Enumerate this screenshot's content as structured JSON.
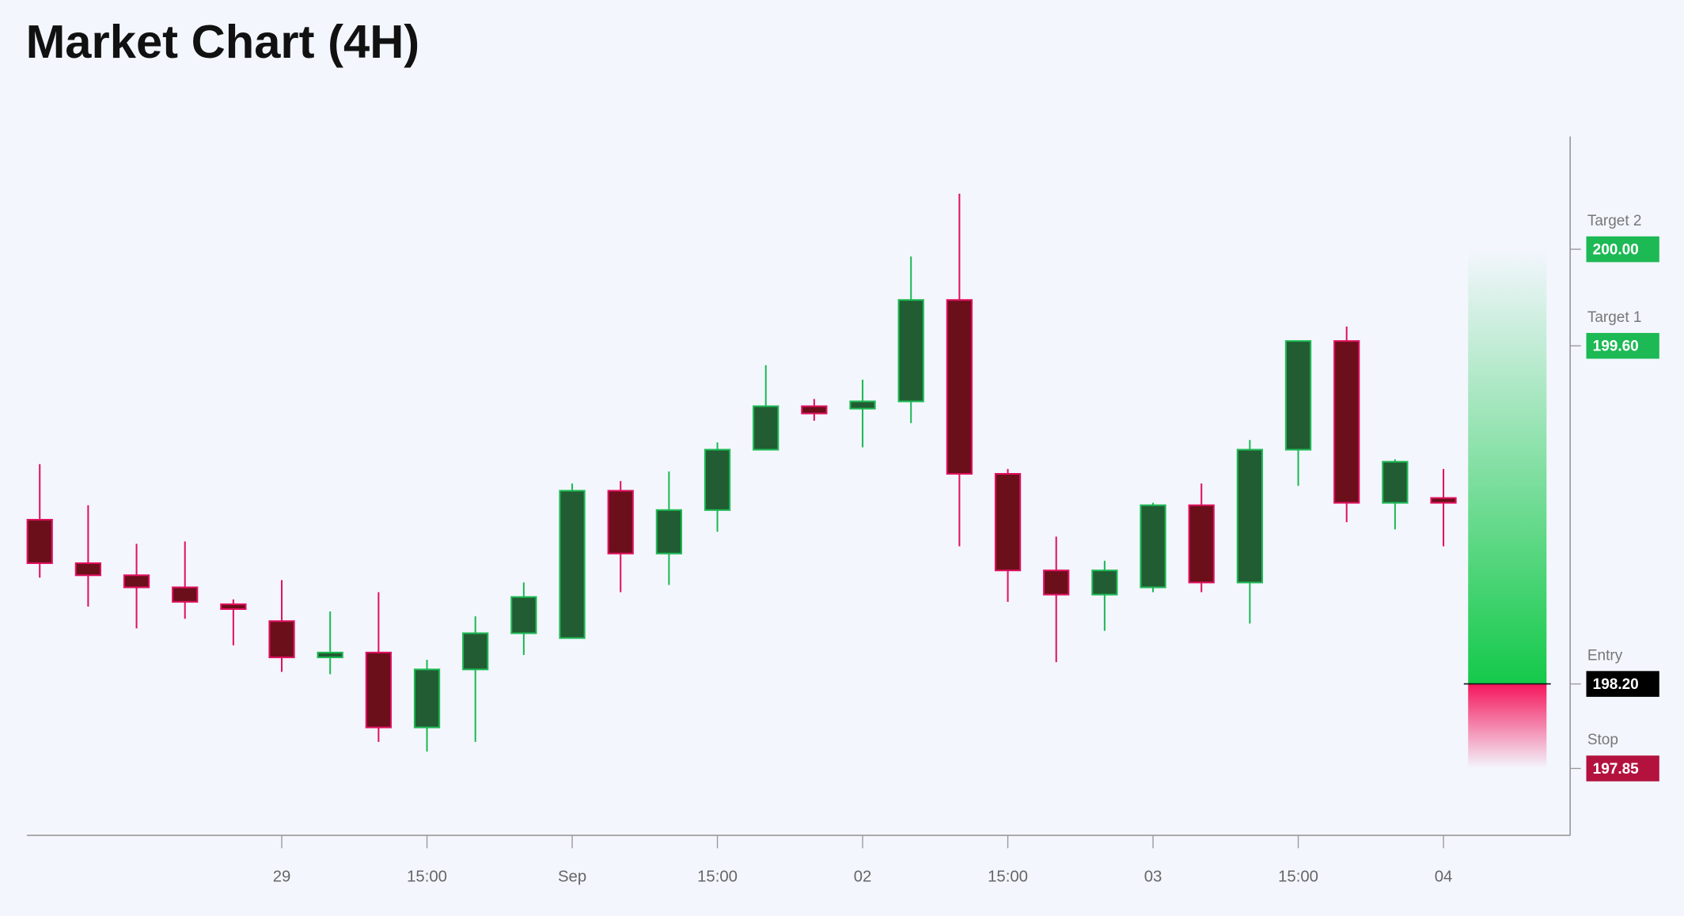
{
  "chart_data": {
    "type": "candlestick",
    "title": "Market Chart (4H)",
    "categories": [
      null,
      null,
      null,
      null,
      null,
      "29",
      null,
      null,
      "15:00",
      null,
      null,
      "Sep",
      null,
      null,
      "15:00",
      null,
      null,
      "02",
      null,
      null,
      "15:00",
      null,
      null,
      "03",
      null,
      null,
      "15:00",
      null,
      null,
      "04"
    ],
    "open": [
      198.88,
      198.7,
      198.65,
      198.6,
      198.53,
      198.46,
      198.31,
      198.33,
      198.02,
      198.26,
      198.41,
      198.39,
      199.0,
      198.74,
      198.92,
      199.17,
      199.35,
      199.34,
      199.37,
      199.79,
      199.07,
      198.67,
      198.57,
      198.6,
      198.94,
      198.62,
      199.17,
      199.62,
      198.95,
      198.97
    ],
    "high": [
      199.11,
      198.94,
      198.78,
      198.79,
      198.55,
      198.63,
      198.5,
      198.58,
      198.3,
      198.48,
      198.62,
      199.03,
      199.04,
      199.08,
      199.2,
      199.52,
      199.38,
      199.46,
      199.97,
      200.23,
      199.09,
      198.81,
      198.71,
      198.95,
      199.03,
      199.21,
      199.62,
      199.68,
      199.13,
      199.09
    ],
    "low": [
      198.64,
      198.52,
      198.43,
      198.47,
      198.36,
      198.25,
      198.24,
      197.96,
      197.92,
      197.96,
      198.32,
      198.39,
      198.58,
      198.61,
      198.83,
      199.17,
      199.29,
      199.18,
      199.28,
      198.77,
      198.54,
      198.29,
      198.42,
      198.58,
      198.58,
      198.45,
      199.02,
      198.87,
      198.84,
      198.77
    ],
    "close": [
      198.7,
      198.65,
      198.6,
      198.54,
      198.51,
      198.31,
      198.33,
      198.02,
      198.26,
      198.41,
      198.56,
      199.0,
      198.74,
      198.92,
      199.17,
      199.35,
      199.32,
      199.37,
      199.79,
      199.07,
      198.67,
      198.57,
      198.67,
      198.94,
      198.62,
      199.17,
      199.62,
      198.95,
      199.12,
      198.95
    ],
    "up_color": "#1db954",
    "up_fill": "#225c33",
    "down_color": "#e0115f",
    "down_fill": "#6b0f1a",
    "ylim": [
      197.573,
      200.467
    ],
    "levels": [
      {
        "name": "Target 2",
        "value": 200,
        "label": "200.00",
        "color": "#1db954"
      },
      {
        "name": "Target 1",
        "value": 199.6,
        "label": "199.60",
        "color": "#1db954"
      },
      {
        "name": "Entry",
        "value": 198.2,
        "label": "198.20",
        "color": "#000000"
      },
      {
        "name": "Stop",
        "value": 197.85,
        "label": "197.85",
        "color": "#b3123f"
      }
    ]
  }
}
